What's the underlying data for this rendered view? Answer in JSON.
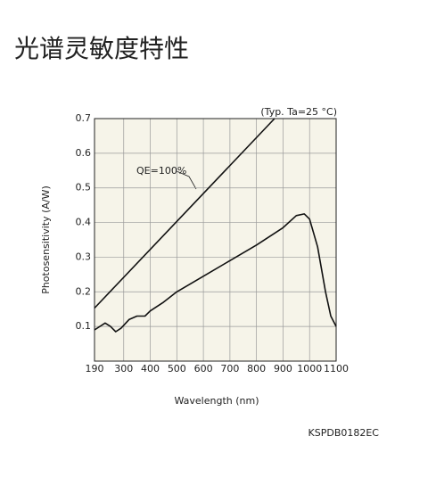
{
  "chart_data": {
    "type": "line",
    "title": "光谱灵敏度特性",
    "x_label": "Wavelength (nm)",
    "y_label": "Photosensitivity (A/W)",
    "annotations": [
      "(Typ. Ta=25 °C)",
      "KSPDB0182EC"
    ],
    "xlim": [
      190,
      1100
    ],
    "xticks": [
      190,
      300,
      400,
      500,
      600,
      700,
      800,
      900,
      1000,
      1100
    ],
    "ylim": [
      0,
      0.7
    ],
    "yticks": [
      0.1,
      0.2,
      0.3,
      0.4,
      0.5,
      0.6,
      0.7
    ],
    "grid": true,
    "series": [
      {
        "color": "#111111",
        "x": [
          190,
          230,
          250,
          270,
          290,
          320,
          350,
          380,
          400,
          450,
          500,
          600,
          700,
          800,
          900,
          950,
          980,
          1000,
          1030,
          1060,
          1080,
          1100
        ],
        "values": [
          0.09,
          0.11,
          0.1,
          0.085,
          0.095,
          0.12,
          0.13,
          0.13,
          0.145,
          0.17,
          0.2,
          0.245,
          0.29,
          0.335,
          0.385,
          0.42,
          0.425,
          0.41,
          0.33,
          0.2,
          0.13,
          0.1
        ]
      },
      {
        "name": "QE=100%",
        "color": "#111111",
        "x": [
          190,
          868
        ],
        "values": [
          0.153,
          0.7
        ]
      }
    ]
  }
}
